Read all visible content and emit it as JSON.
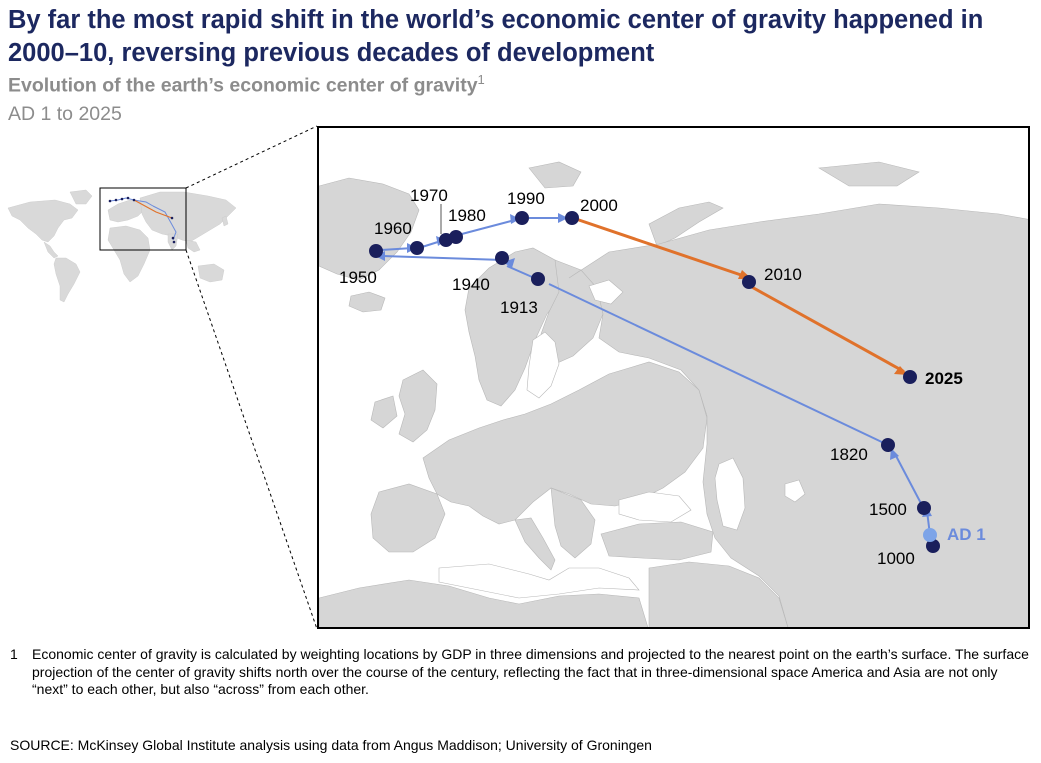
{
  "header": {
    "title": "By far the most rapid shift in the world’s economic center of gravity happened in 2000–10, reversing previous decades of development",
    "subtitle": "Evolution of the earth’s economic center of gravity",
    "subtitle_note": "1",
    "period": "AD 1 to 2025"
  },
  "colors": {
    "point": "#1a1f5c",
    "historic_line": "#6b8bdc",
    "recent_line": "#e0722b",
    "land": "#d6d6d6",
    "ad1_point": "#7da4e8",
    "ad1_label": "#6b8bdc"
  },
  "map": {
    "points": [
      {
        "year": "AD 1"
      },
      {
        "year": "1000"
      },
      {
        "year": "1500"
      },
      {
        "year": "1820"
      },
      {
        "year": "1913"
      },
      {
        "year": "1940"
      },
      {
        "year": "1950"
      },
      {
        "year": "1960"
      },
      {
        "year": "1970"
      },
      {
        "year": "1980"
      },
      {
        "year": "1990"
      },
      {
        "year": "2000"
      },
      {
        "year": "2010"
      },
      {
        "year": "2025"
      }
    ]
  },
  "footnote": {
    "number": "1",
    "text": "Economic center of gravity is calculated by weighting locations by GDP in three dimensions and projected to the nearest point on the earth’s surface. The surface projection of the center of gravity shifts north over the course of the century, reflecting the fact that in three-dimensional space America and Asia are not only “next” to each other, but also “across” from each other."
  },
  "source": "SOURCE: McKinsey Global Institute analysis using data from Angus Maddison; University of Groningen"
}
